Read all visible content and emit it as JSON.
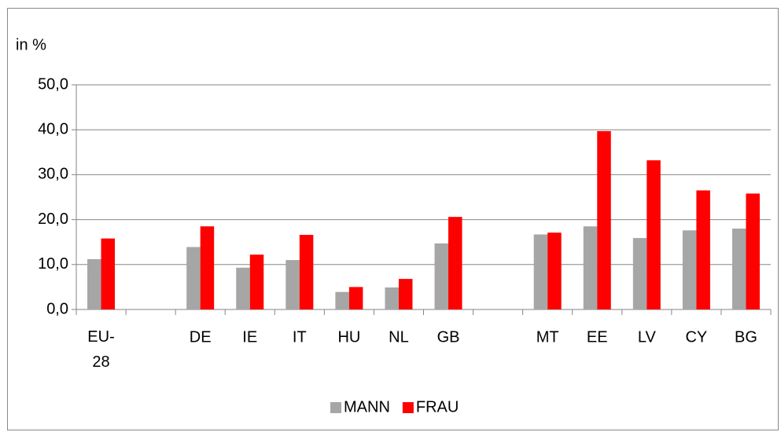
{
  "chart_data": {
    "type": "bar",
    "y_label": "in %",
    "categories": [
      "EU-28",
      null,
      "DE",
      "IE",
      "IT",
      "HU",
      "NL",
      "GB",
      null,
      "MT",
      "EE",
      "LV",
      "CY",
      "BG"
    ],
    "series": [
      {
        "name": "MANN",
        "color": "#a6a6a6",
        "values": [
          11.2,
          null,
          13.9,
          9.3,
          11.0,
          3.9,
          4.9,
          14.7,
          null,
          16.7,
          18.5,
          15.9,
          17.6,
          18.0
        ]
      },
      {
        "name": "FRAU",
        "color": "#ff0000",
        "values": [
          15.8,
          null,
          18.5,
          12.2,
          16.6,
          5.0,
          6.8,
          20.6,
          null,
          17.1,
          39.7,
          33.2,
          26.5,
          25.8
        ]
      }
    ],
    "ylim": [
      0,
      50
    ],
    "yticks": [
      {
        "value": 0,
        "label": "0,0"
      },
      {
        "value": 10,
        "label": "10,0"
      },
      {
        "value": 20,
        "label": "20,0"
      },
      {
        "value": 30,
        "label": "30,0"
      },
      {
        "value": 40,
        "label": "40,0"
      },
      {
        "value": 50,
        "label": "50,0"
      }
    ],
    "grid": true,
    "legend": "bottom"
  }
}
